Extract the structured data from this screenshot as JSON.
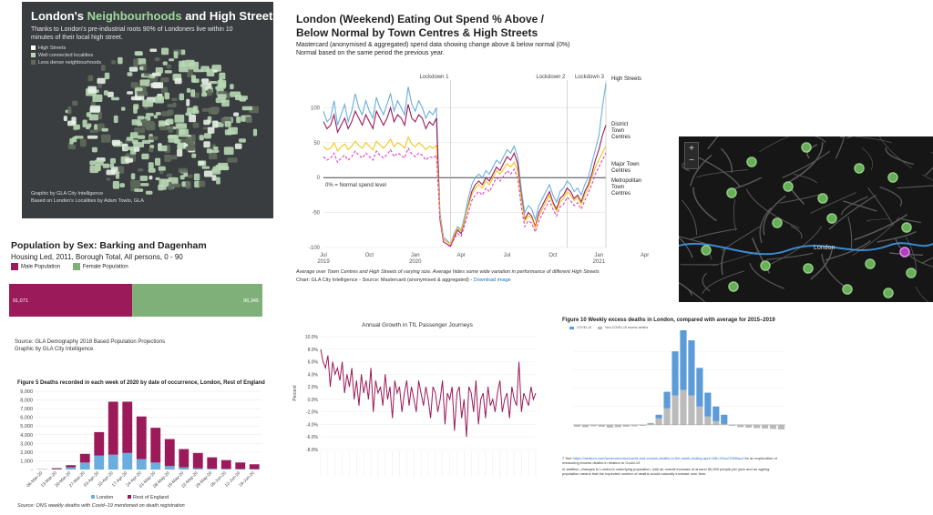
{
  "colors": {
    "magenta": "#9b1b5a",
    "lightblue": "#6aaee0",
    "yellow": "#f2c61b",
    "pink": "#e040c0",
    "green": "#7fb07a",
    "blue": "#5a9bd8",
    "gray": "#bbbbbb",
    "mapbg": "#3a3d40"
  },
  "map1": {
    "title_a": "London's ",
    "title_b": "Neighbourhoods",
    "title_c": " and High Streets",
    "subtitle": "Thanks to London's pre-industrial roots 90% of Londoners live within 10 minutes of their local high street.",
    "legend": [
      "High Streets",
      "Well connected localities",
      "Less dense neighbourhoods"
    ],
    "credit1": "Graphic by GLA City Intelligence",
    "credit2": "Based on London's Localities by Adam Towlo, GLA"
  },
  "eating": {
    "title": "London (Weekend) Eating Out Spend % Above / Below Normal by Town Centres & High Streets",
    "subtitle1": "Mastercard (anonymised & aggregated) spend data showing change above & below normal (0%)",
    "subtitle2": "Normal based on the same period the previous year.",
    "normal_label": "0% = Normal spend level",
    "footnote": "Average over Town Centres and High Streets of varying size. Average hides some wide variation in performance of different High Streets",
    "source": "Chart: GLA City Intelligence - Source: Mastercard (anonymised & aggregated) - ",
    "download": "Download image"
  },
  "map2": {
    "zoom_in": "+",
    "zoom_out": "−",
    "city": "London"
  },
  "population": {
    "title": "Population by Sex: Barking and Dagenham",
    "subtitle": "Housing Led, 2011, Borough Total, All persons, 0 - 90",
    "legend_male": "Male Population",
    "legend_female": "Female Population",
    "source1": "Source: GLA Demography 2018 Based Population Projections",
    "source2": "Graphic by GLA City Intelligence"
  },
  "deaths": {
    "title": "Figure 5 Deaths recorded in each week of 2020 by date of occurrence, London, Rest of England",
    "source": "Source: ONS weekly deaths with Covid–19 mentioned on death registration"
  },
  "tfl": {
    "title": "Annual Growth in TfL Passenger Journeys",
    "ylabel": "Percent"
  },
  "excess": {
    "title": "Figure 10 Weekly excess deaths in London, compared with average for 2015–2019",
    "legend1": "COVID-19",
    "legend2": "Non-COVID-19 excess deaths",
    "footnote_num": "7 See ",
    "footnote_link": "https://medium.com/wmcconomics/covid-and-excess-deaths-in-the-week-ending-april-10th-20ca72355ac4",
    "footnote_rest": " for an exploration of measuring excess deaths in relation to Covid-19",
    "note": "In addition, changes to London's underlying population, with an overall increase of around 80,000 people per year and an ageing population means that the expected number of deaths would naturally increase over time."
  },
  "chart_data": [
    {
      "type": "line",
      "id": "eating",
      "title": "London (Weekend) Eating Out Spend % Above / Below Normal by Town Centres & High Streets",
      "ylim": [
        -100,
        150
      ],
      "yticks": [
        100,
        50,
        0,
        -50,
        -100
      ],
      "xticks": [
        {
          "t": 0,
          "label": "Jul\n2019"
        },
        {
          "t": 13,
          "label": "Oct"
        },
        {
          "t": 26,
          "label": "Jan\n2020"
        },
        {
          "t": 39,
          "label": "Apr"
        },
        {
          "t": 52,
          "label": "Jul"
        },
        {
          "t": 65,
          "label": "Oct"
        },
        {
          "t": 78,
          "label": "Jan\n2021"
        },
        {
          "t": 91,
          "label": "Apr"
        }
      ],
      "annotations": [
        {
          "t": 36,
          "label": "Lockdown 1"
        },
        {
          "t": 69,
          "label": "Lockdown 2"
        },
        {
          "t": 80,
          "label": "Lockdown 3"
        }
      ],
      "series": [
        {
          "name": "High Streets",
          "color": "#6aaee0",
          "values": [
            95,
            80,
            85,
            110,
            75,
            90,
            105,
            80,
            95,
            120,
            100,
            90,
            110,
            95,
            85,
            115,
            100,
            90,
            105,
            120,
            95,
            110,
            100,
            90,
            130,
            105,
            95,
            110,
            100,
            85,
            95,
            90,
            100,
            -50,
            -85,
            -90,
            -95,
            -80,
            -70,
            -75,
            -55,
            -30,
            -10,
            0,
            5,
            0,
            10,
            5,
            15,
            25,
            20,
            30,
            40,
            35,
            45,
            30,
            -15,
            -50,
            -40,
            -45,
            -60,
            -40,
            -30,
            -20,
            -10,
            -25,
            -35,
            -20,
            -15,
            -5,
            -10,
            -20,
            -15,
            -25,
            -10,
            0,
            20,
            40,
            60,
            100,
            135
          ]
        },
        {
          "name": "District Town Centres",
          "color": "#9b1b5a",
          "values": [
            80,
            70,
            75,
            90,
            65,
            75,
            85,
            70,
            80,
            95,
            85,
            75,
            90,
            80,
            70,
            95,
            85,
            75,
            85,
            100,
            80,
            90,
            85,
            75,
            105,
            85,
            80,
            90,
            85,
            70,
            80,
            75,
            85,
            -60,
            -92,
            -95,
            -98,
            -85,
            -75,
            -80,
            -62,
            -40,
            -20,
            -10,
            -5,
            -10,
            0,
            -5,
            5,
            15,
            10,
            20,
            30,
            25,
            35,
            20,
            -25,
            -60,
            -50,
            -55,
            -70,
            -50,
            -40,
            -30,
            -20,
            -35,
            -45,
            -30,
            -25,
            -15,
            -20,
            -30,
            -25,
            -35,
            -20,
            -10,
            5,
            25,
            40,
            60,
            75
          ]
        },
        {
          "name": "Major Town Centres",
          "color": "#f2c61b",
          "values": [
            45,
            40,
            42,
            50,
            38,
            44,
            48,
            40,
            45,
            52,
            46,
            42,
            50,
            45,
            40,
            52,
            47,
            42,
            48,
            55,
            44,
            50,
            47,
            42,
            58,
            48,
            44,
            50,
            46,
            40,
            45,
            42,
            46,
            -55,
            -88,
            -92,
            -95,
            -82,
            -72,
            -77,
            -60,
            -42,
            -25,
            -15,
            -10,
            -15,
            -5,
            -10,
            0,
            10,
            5,
            12,
            20,
            15,
            22,
            10,
            -30,
            -62,
            -55,
            -58,
            -72,
            -55,
            -45,
            -35,
            -25,
            -38,
            -48,
            -35,
            -30,
            -20,
            -25,
            -33,
            -28,
            -38,
            -25,
            -15,
            0,
            15,
            25,
            35,
            45
          ]
        },
        {
          "name": "Metropolitan Town Centres",
          "color": "#e040c0",
          "dash": "3,2",
          "values": [
            30,
            25,
            28,
            35,
            22,
            28,
            32,
            25,
            30,
            38,
            32,
            28,
            35,
            30,
            25,
            38,
            32,
            28,
            33,
            40,
            30,
            35,
            32,
            28,
            42,
            34,
            30,
            35,
            32,
            25,
            30,
            28,
            32,
            -60,
            -92,
            -96,
            -99,
            -88,
            -80,
            -84,
            -68,
            -50,
            -33,
            -25,
            -20,
            -25,
            -15,
            -20,
            -10,
            0,
            -5,
            2,
            10,
            5,
            12,
            0,
            -40,
            -70,
            -62,
            -65,
            -78,
            -62,
            -52,
            -42,
            -33,
            -45,
            -55,
            -42,
            -38,
            -28,
            -33,
            -40,
            -36,
            -45,
            -33,
            -22,
            -10,
            5,
            15,
            25,
            35
          ]
        }
      ]
    },
    {
      "type": "bar",
      "id": "population",
      "orientation": "horizontal",
      "series": [
        {
          "name": "Male Population",
          "value": 91071,
          "label": "91,071"
        },
        {
          "name": "Female Population",
          "value": 96345,
          "label": "96,345"
        }
      ]
    },
    {
      "type": "bar",
      "id": "deaths",
      "stacked": true,
      "title": "Figure 5 Deaths recorded in each week of 2020 by date of occurrence, London, Rest of England",
      "ylim": [
        0,
        9000
      ],
      "yticks": [
        0,
        1000,
        2000,
        3000,
        4000,
        5000,
        6000,
        7000,
        8000,
        9000
      ],
      "yticklabels": [
        "-",
        "1,000",
        "2,000",
        "3,000",
        "4,000",
        "5,000",
        "6,000",
        "7,000",
        "8,000",
        "9,000"
      ],
      "categories": [
        "06-Mar-20",
        "13-Mar-20",
        "20-Mar-20",
        "27-Mar-20",
        "03-Apr-20",
        "10-Apr-20",
        "17-Apr-20",
        "24-Apr-20",
        "01-May-20",
        "08-May-20",
        "15-May-20",
        "22-May-20",
        "29-May-20",
        "05-Jun-20",
        "12-Jun-20",
        "19-Jun-20"
      ],
      "series": [
        {
          "name": "London",
          "color": "#6aaee0",
          "values": [
            10,
            50,
            250,
            800,
            1600,
            1700,
            1900,
            1200,
            800,
            400,
            250,
            150,
            100,
            80,
            60,
            50
          ]
        },
        {
          "name": "Rest of England",
          "color": "#9b1b5a",
          "values": [
            20,
            100,
            250,
            1000,
            2700,
            6100,
            5900,
            4900,
            4000,
            3100,
            2100,
            1750,
            1300,
            1000,
            750,
            550
          ]
        }
      ]
    },
    {
      "type": "line",
      "id": "tfl",
      "title": "Annual Growth in TfL Passenger Journeys",
      "ylabel": "Percent",
      "ylim": [
        -0.08,
        0.1
      ],
      "yticks": [
        0.1,
        0.08,
        0.06,
        0.04,
        0.02,
        0.0,
        -0.02,
        -0.04,
        -0.06,
        -0.08
      ],
      "yticklabels": [
        "10.0%",
        "8.0%",
        "6.0%",
        "4.0%",
        "2.0%",
        "0.0%",
        "-2.0%",
        "-4.0%",
        "-6.0%",
        "-8.0%"
      ],
      "series": [
        {
          "name": "",
          "color": "#9b1b5a",
          "values": [
            0.08,
            0.06,
            0.05,
            0.07,
            0.02,
            0.06,
            0.04,
            0.05,
            0.03,
            0.06,
            0.01,
            0.04,
            0.02,
            0.05,
            0.0,
            0.03,
            -0.01,
            0.04,
            0.01,
            0.03,
            0.0,
            0.05,
            -0.02,
            0.03,
            0.01,
            0.02,
            -0.01,
            0.04,
            0.0,
            0.02,
            -0.03,
            0.03,
            0.01,
            0.02,
            -0.02,
            0.01,
            0.03,
            -0.01,
            0.02,
            0.0,
            -0.02,
            0.03,
            0.01,
            -0.01,
            0.02,
            0.0,
            -0.03,
            0.02,
            0.01,
            -0.02,
            0.0,
            0.03,
            -0.04,
            0.01,
            0.0,
            0.02,
            -0.05,
            0.01,
            0.02,
            -0.03,
            0.0,
            -0.06,
            0.02,
            0.01,
            -0.02,
            0.03,
            -0.04,
            0.0,
            0.01,
            -0.03,
            0.02,
            -0.01,
            0.0,
            -0.02,
            0.01,
            0.03,
            -0.02,
            0.0,
            0.01,
            -0.03,
            0.02,
            0.0,
            -0.01,
            0.06,
            -0.02,
            0.01,
            0.0,
            -0.01,
            0.02,
            0.0,
            0.01
          ]
        }
      ]
    },
    {
      "type": "bar",
      "id": "excess",
      "stacked": true,
      "title": "Figure 10 Weekly excess deaths in London, compared with average for 2015–2019",
      "series": [
        {
          "name": "COVID-19",
          "color": "#5a9bd8",
          "values": [
            0,
            0,
            0,
            0,
            0,
            0,
            0,
            0,
            0,
            5,
            40,
            180,
            480,
            700,
            600,
            420,
            260,
            160,
            100,
            60,
            40,
            25,
            15,
            10,
            5,
            0
          ]
        },
        {
          "name": "Non-COVID-19 excess deaths",
          "color": "#bbbbbb",
          "values": [
            -20,
            -25,
            -15,
            -20,
            -30,
            -25,
            -20,
            -15,
            -10,
            15,
            70,
            180,
            320,
            380,
            320,
            200,
            90,
            40,
            10,
            -10,
            -25,
            -30,
            -35,
            -40,
            -45,
            -50
          ]
        }
      ]
    }
  ]
}
